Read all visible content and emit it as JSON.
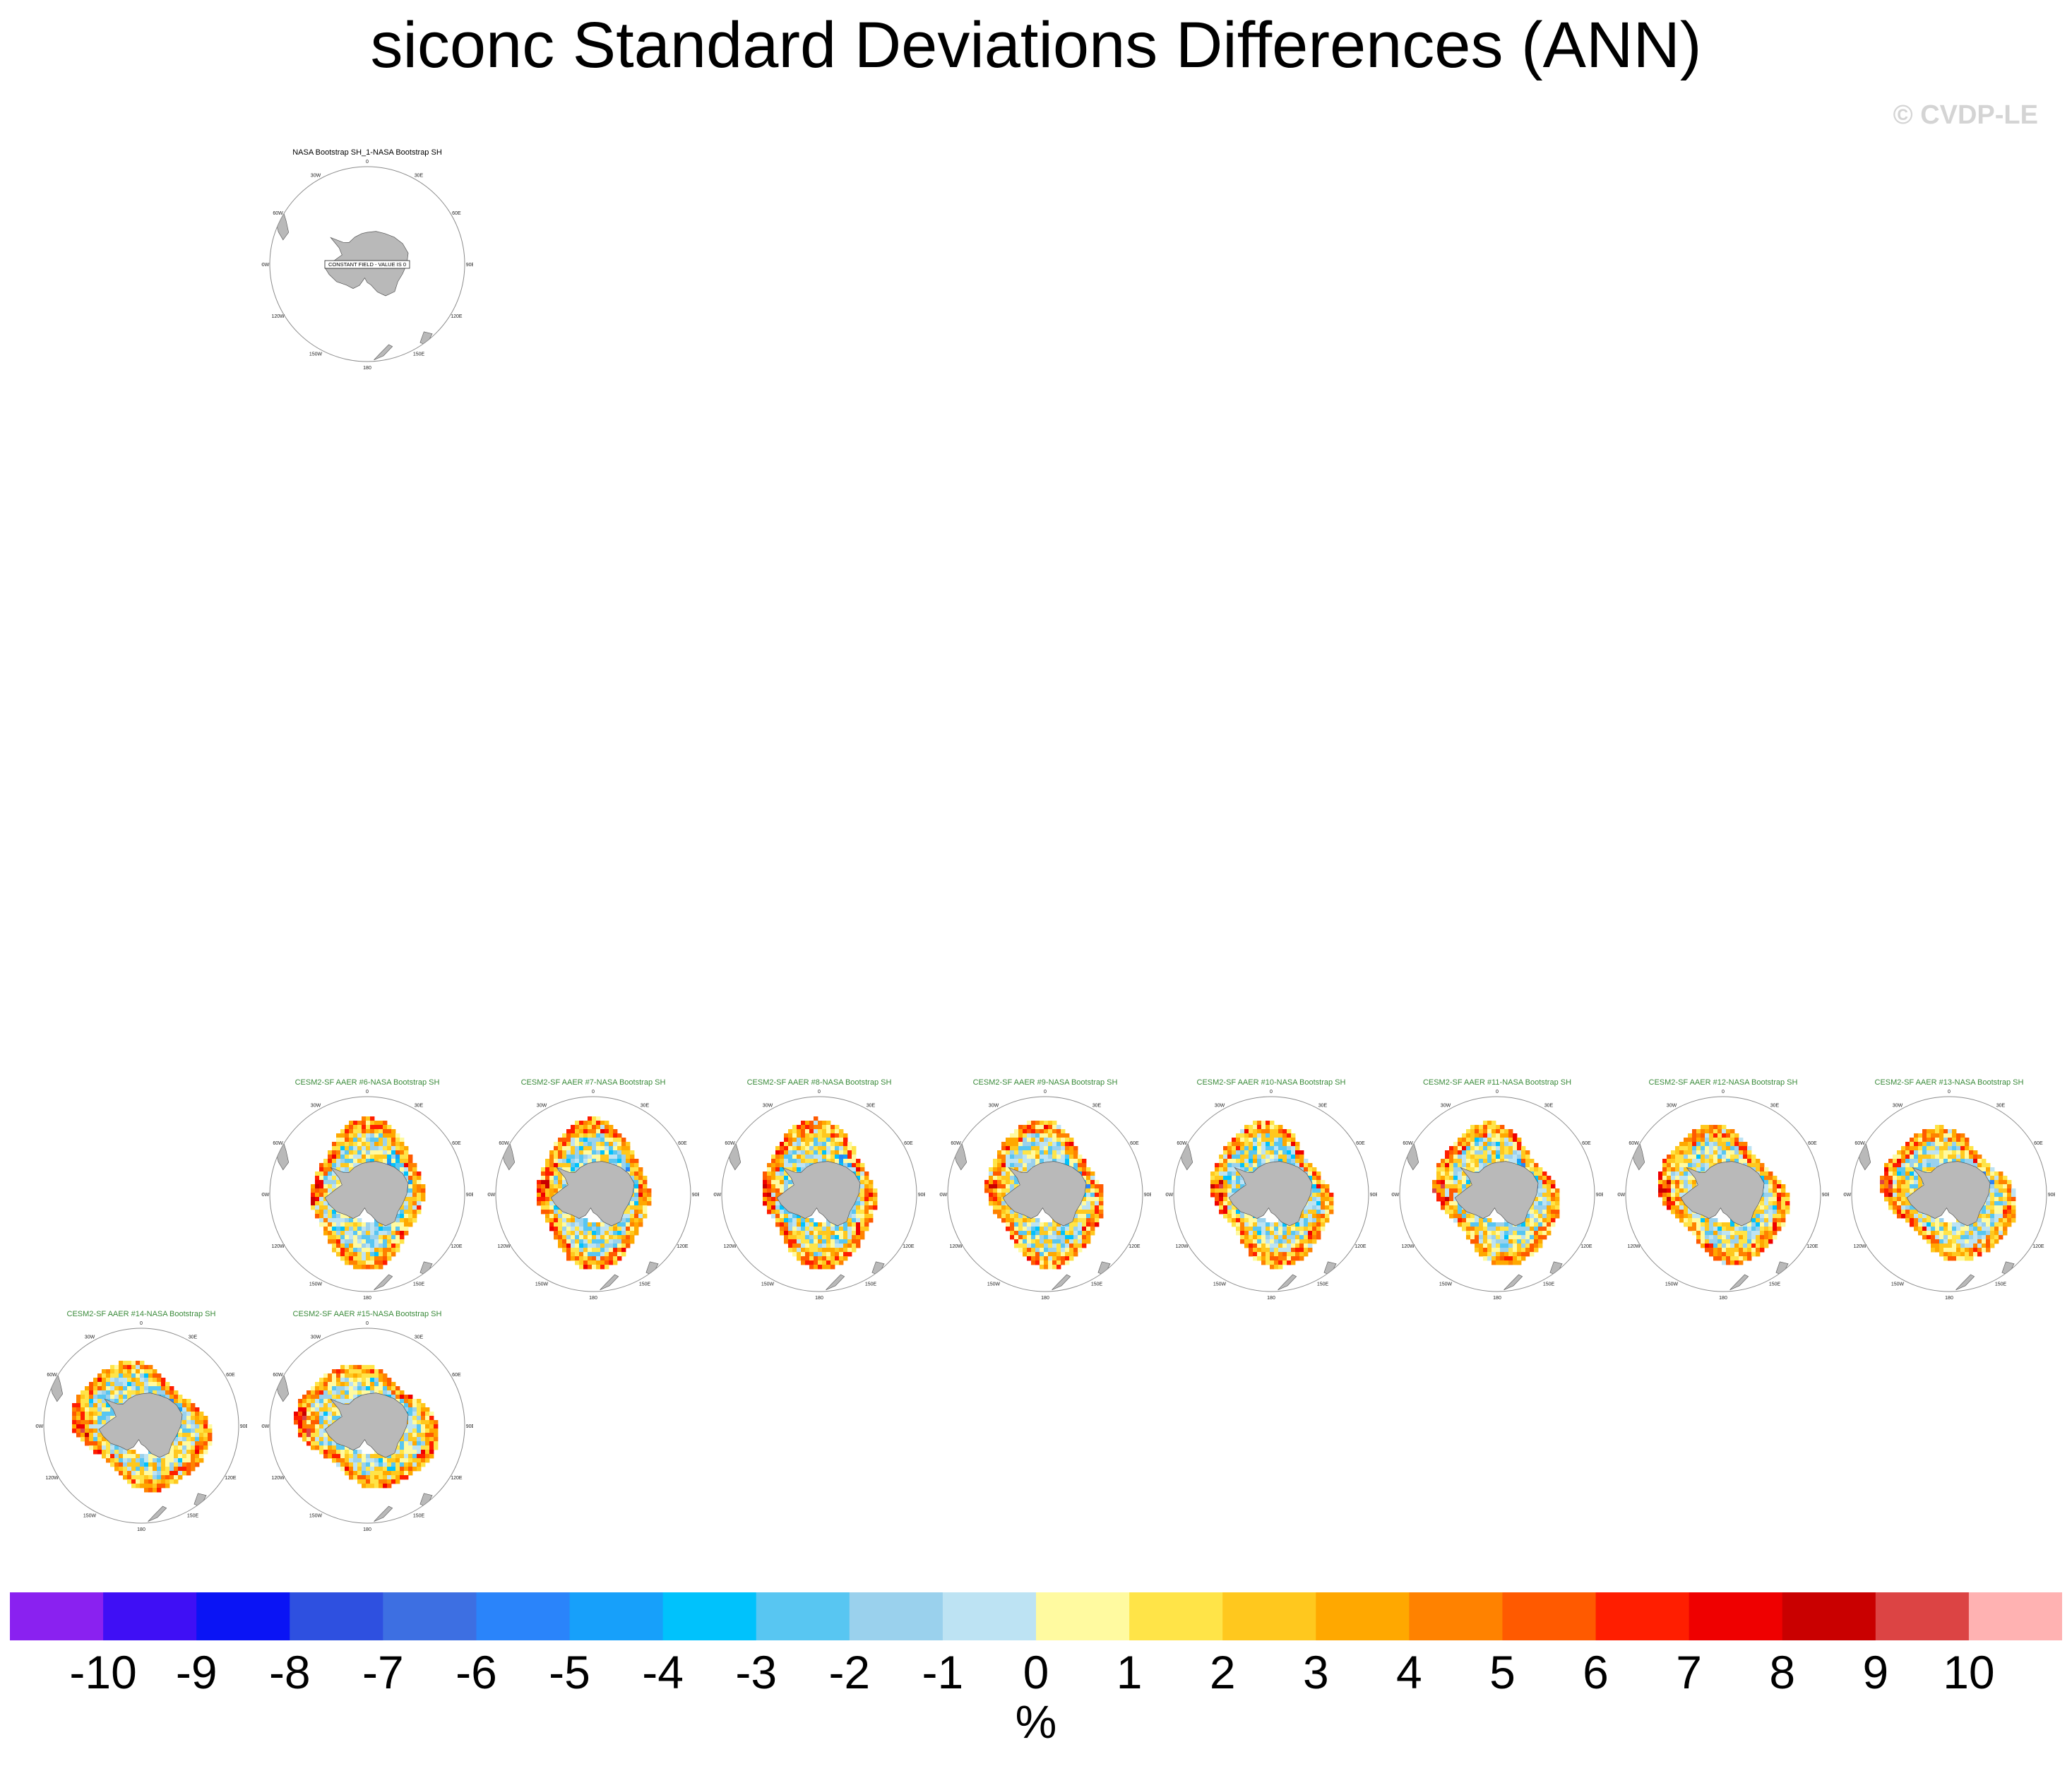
{
  "title": "siconc Standard Deviations Differences (ANN)",
  "copyright": "© CVDP-LE",
  "colors": {
    "title_obs": "#000000",
    "title_model": "#3a8a3a",
    "land": "#b9b9b9",
    "ring": "#8c8c8c"
  },
  "chart_data": {
    "type": "heatmap",
    "projection": "south-polar-stereographic",
    "units": "%",
    "longitude_labels": [
      "0",
      "30E",
      "60E",
      "90E",
      "120E",
      "150E",
      "180",
      "150W",
      "120W",
      "90W",
      "60W",
      "30W"
    ],
    "panels": [
      {
        "title": "NASA Bootstrap SH_1-NASA Bootstrap SH",
        "kind": "obs",
        "note": "CONSTANT FIELD - VALUE IS 0",
        "seed": 0
      },
      {
        "title": "CESM2-SF AAER #6-NASA Bootstrap SH",
        "kind": "model",
        "seed": 6
      },
      {
        "title": "CESM2-SF AAER #7-NASA Bootstrap SH",
        "kind": "model",
        "seed": 7
      },
      {
        "title": "CESM2-SF AAER #8-NASA Bootstrap SH",
        "kind": "model",
        "seed": 8
      },
      {
        "title": "CESM2-SF AAER #9-NASA Bootstrap SH",
        "kind": "model",
        "seed": 9
      },
      {
        "title": "CESM2-SF AAER #10-NASA Bootstrap SH",
        "kind": "model",
        "seed": 10
      },
      {
        "title": "CESM2-SF AAER #11-NASA Bootstrap SH",
        "kind": "model",
        "seed": 11
      },
      {
        "title": "CESM2-SF AAER #12-NASA Bootstrap SH",
        "kind": "model",
        "seed": 12
      },
      {
        "title": "CESM2-SF AAER #13-NASA Bootstrap SH",
        "kind": "model",
        "seed": 13
      },
      {
        "title": "CESM2-SF AAER #14-NASA Bootstrap SH",
        "kind": "model",
        "seed": 14
      },
      {
        "title": "CESM2-SF AAER #15-NASA Bootstrap SH",
        "kind": "model",
        "seed": 15
      }
    ],
    "colorbar": {
      "labels": [
        "-10",
        "-9",
        "-8",
        "-7",
        "-6",
        "-5",
        "-4",
        "-3",
        "-2",
        "-1",
        "0",
        "1",
        "2",
        "3",
        "4",
        "5",
        "6",
        "7",
        "8",
        "9",
        "10"
      ],
      "colors": [
        "#8a21f0",
        "#3f0ff5",
        "#0a14f5",
        "#2e50e0",
        "#3d6fe2",
        "#2a84fa",
        "#17a0fa",
        "#00c2fc",
        "#58c6f2",
        "#9ad1ed",
        "#bde3f3",
        "#fffaa0",
        "#ffe448",
        "#ffc81e",
        "#ffa800",
        "#ff8200",
        "#ff5a00",
        "#ff1e00",
        "#ef0000",
        "#c90000",
        "#dc4444",
        "#ffb2b2"
      ]
    }
  }
}
